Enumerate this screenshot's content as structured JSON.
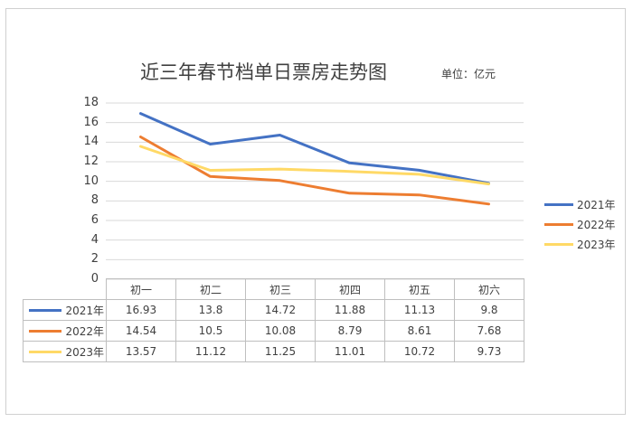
{
  "title": "近三年春节档单日票房走势图",
  "unit": "单位：亿元",
  "chart_data": {
    "type": "line",
    "title": "近三年春节档单日票房走势图",
    "unit_label": "单位：亿元",
    "categories": [
      "初一",
      "初二",
      "初三",
      "初四",
      "初五",
      "初六"
    ],
    "yticks": [
      "0",
      "2",
      "4",
      "6",
      "8",
      "10",
      "12",
      "14",
      "16",
      "18"
    ],
    "ylim": [
      0,
      18
    ],
    "grid": true,
    "legend_position": "right",
    "series": [
      {
        "name": "2021年",
        "color": "#4472C4",
        "values": [
          16.93,
          13.8,
          14.72,
          11.88,
          11.13,
          9.8
        ],
        "labels": [
          "16.93",
          "13.8",
          "14.72",
          "11.88",
          "11.13",
          "9.8"
        ]
      },
      {
        "name": "2022年",
        "color": "#ED7D31",
        "values": [
          14.54,
          10.5,
          10.08,
          8.79,
          8.61,
          7.68
        ],
        "labels": [
          "14.54",
          "10.5",
          "10.08",
          "8.79",
          "8.61",
          "7.68"
        ]
      },
      {
        "name": "2023年",
        "color": "#FFD966",
        "values": [
          13.57,
          11.12,
          11.25,
          11.01,
          10.72,
          9.73
        ],
        "labels": [
          "13.57",
          "11.12",
          "11.25",
          "11.01",
          "10.72",
          "9.73"
        ]
      }
    ]
  }
}
